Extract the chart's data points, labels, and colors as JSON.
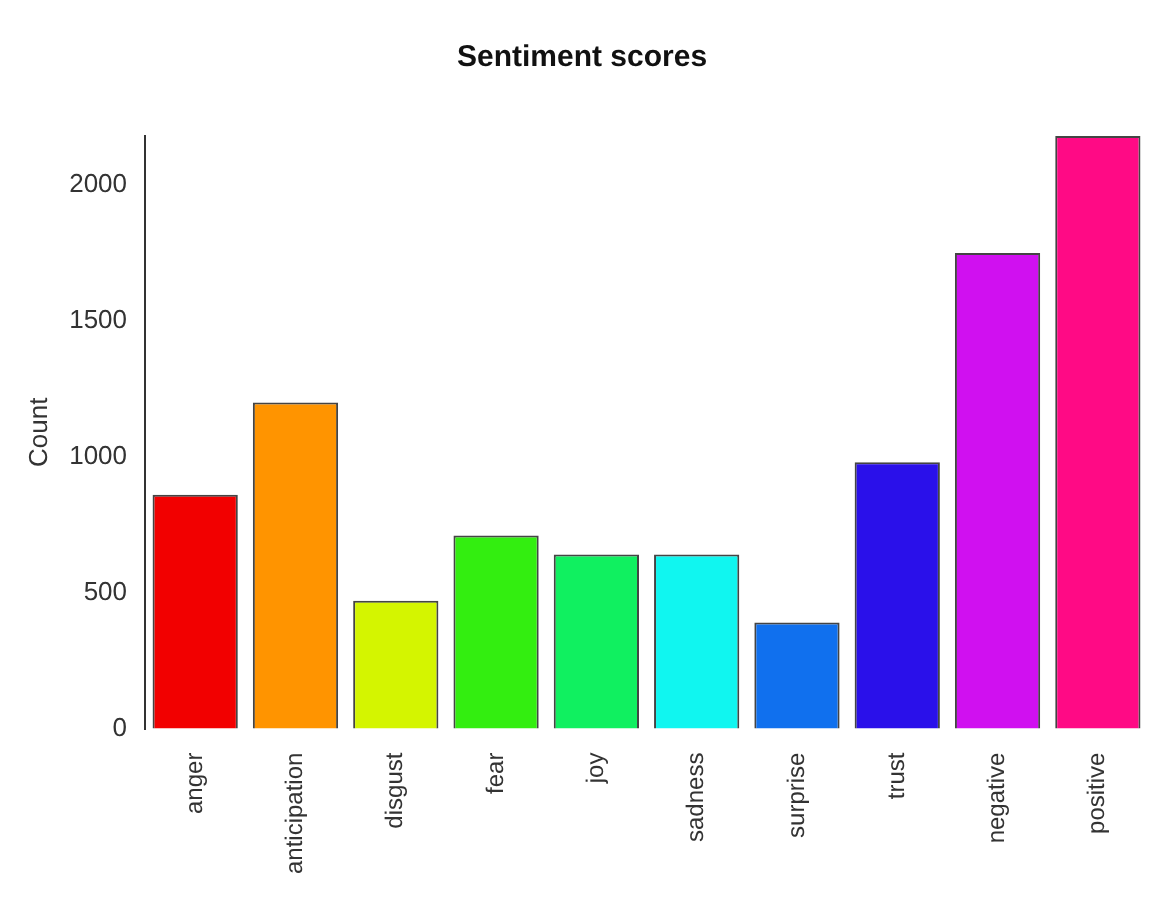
{
  "chart_data": {
    "type": "bar",
    "title": "Sentiment scores",
    "ylabel": "Count",
    "categories": [
      "anger",
      "anticipation",
      "disgust",
      "fear",
      "joy",
      "sadness",
      "surprise",
      "trust",
      "negative",
      "positive"
    ],
    "values": [
      860,
      1200,
      470,
      710,
      640,
      640,
      390,
      980,
      1750,
      2180
    ],
    "colors": [
      "#f20000",
      "#ff9400",
      "#d4f500",
      "#33ee10",
      "#10f060",
      "#10f6f0",
      "#1070ee",
      "#2a10ea",
      "#d010f0",
      "#ff0a85"
    ],
    "ylim": [
      0,
      2180
    ],
    "yticks": [
      0,
      500,
      1000,
      1500,
      2000
    ],
    "grid": false,
    "legend": false
  }
}
